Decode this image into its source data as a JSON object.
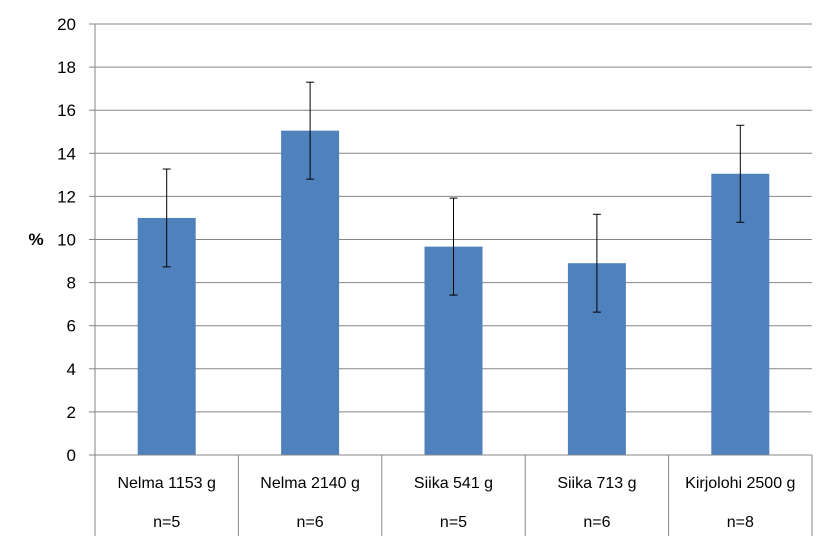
{
  "chart_data": {
    "type": "bar",
    "ylabel": "%",
    "ylim": [
      0,
      20
    ],
    "ytick_step": 2,
    "yticks": [
      "0",
      "2",
      "4",
      "6",
      "8",
      "10",
      "12",
      "14",
      "16",
      "18",
      "20"
    ],
    "grid": true,
    "categories": [
      "Nelma 1153 g",
      "Nelma 2140 g",
      "Siika 541 g",
      "Siika 713 g",
      "Kirjolohi 2500 g"
    ],
    "sample_sizes": [
      "n=5",
      "n=6",
      "n=5",
      "n=6",
      "n=8"
    ],
    "values": [
      11.0,
      15.05,
      9.67,
      8.9,
      13.05
    ],
    "error_bars": [
      2.27,
      2.25,
      2.25,
      2.27,
      2.25
    ],
    "colors": {
      "bar": "#4F81BD",
      "grid": "#868686",
      "axis": "#868686",
      "error_bar": "#000000"
    }
  }
}
